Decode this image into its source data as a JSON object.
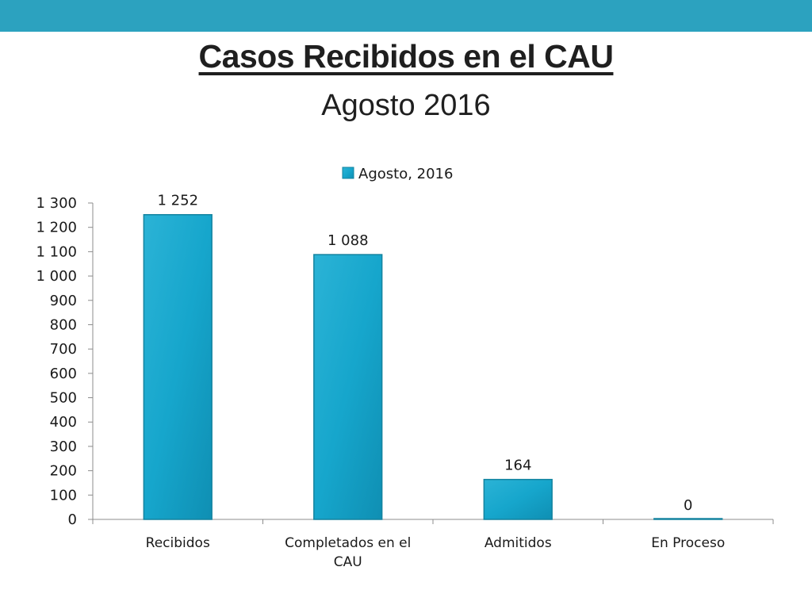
{
  "slide": {
    "title": "Casos Recibidos en el CAU",
    "subtitle": "Agosto 2016"
  },
  "colors": {
    "top_bar": "#2ca2bf",
    "bar_fill": "#1aa8cc",
    "bar_stroke": "#13839f"
  },
  "chart_data": {
    "type": "bar",
    "categories": [
      "Recibidos",
      "Completados en el CAU",
      "Admitidos",
      "En Proceso"
    ],
    "category_lines": [
      [
        "Recibidos"
      ],
      [
        "Completados en el",
        "CAU"
      ],
      [
        "Admitidos"
      ],
      [
        "En Proceso"
      ]
    ],
    "series": [
      {
        "name": "Agosto, 2016",
        "values": [
          1252,
          1088,
          164,
          0
        ]
      }
    ],
    "data_labels": [
      "1 252",
      "1 088",
      "164",
      "0"
    ],
    "ylim": [
      0,
      1300
    ],
    "yticks": [
      0,
      100,
      200,
      300,
      400,
      500,
      600,
      700,
      800,
      900,
      1000,
      1100,
      1200,
      1300
    ],
    "ytick_labels": [
      "0",
      "100",
      "200",
      "300",
      "400",
      "500",
      "600",
      "700",
      "800",
      "900",
      "1 000",
      "1 100",
      "1 200",
      "1 300"
    ],
    "legend": "top-center",
    "grid": false
  }
}
